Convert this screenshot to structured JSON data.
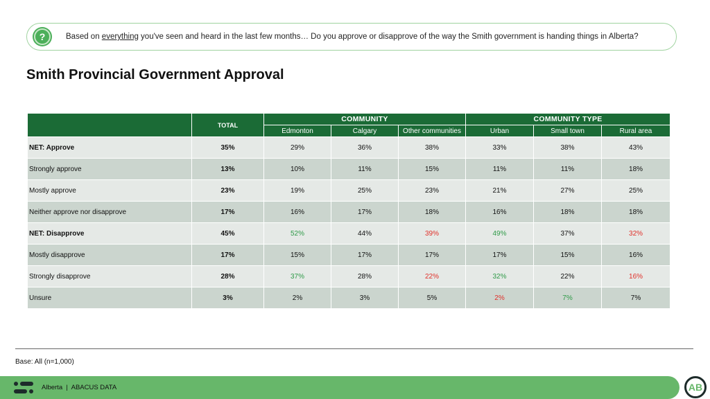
{
  "question": {
    "pre": "Based on ",
    "underlined": "everything",
    "post": " you've seen and heard in the last few months… Do you approve or disapprove of the way the Smith government is handing things in Alberta?",
    "icon": "question-bubble-icon"
  },
  "title": "Smith Provincial Government Approval",
  "table": {
    "total_header": "TOTAL",
    "groups": [
      "COMMUNITY",
      "COMMUNITY TYPE"
    ],
    "columns": [
      "Edmonton",
      "Calgary",
      "Other communities",
      "Urban",
      "Small town",
      "Rural area"
    ],
    "rows": [
      {
        "label": "NET: Approve",
        "bold": true,
        "total": "35%",
        "values": [
          "29%",
          "36%",
          "38%",
          "33%",
          "38%",
          "43%"
        ],
        "colors": [
          "",
          "",
          "",
          "",
          "",
          ""
        ]
      },
      {
        "label": "Strongly approve",
        "total": "13%",
        "values": [
          "10%",
          "11%",
          "15%",
          "11%",
          "11%",
          "18%"
        ],
        "colors": [
          "",
          "",
          "",
          "",
          "",
          ""
        ]
      },
      {
        "label": "Mostly approve",
        "total": "23%",
        "values": [
          "19%",
          "25%",
          "23%",
          "21%",
          "27%",
          "25%"
        ],
        "colors": [
          "",
          "",
          "",
          "",
          "",
          ""
        ]
      },
      {
        "label": "Neither approve nor disapprove",
        "total": "17%",
        "values": [
          "16%",
          "17%",
          "18%",
          "16%",
          "18%",
          "18%"
        ],
        "colors": [
          "",
          "",
          "",
          "",
          "",
          ""
        ]
      },
      {
        "label": "NET: Disapprove",
        "bold": true,
        "total": "45%",
        "values": [
          "52%",
          "44%",
          "39%",
          "49%",
          "37%",
          "32%"
        ],
        "colors": [
          "g",
          "",
          "r",
          "g",
          "",
          "r"
        ]
      },
      {
        "label": "Mostly disapprove",
        "total": "17%",
        "values": [
          "15%",
          "17%",
          "17%",
          "17%",
          "15%",
          "16%"
        ],
        "colors": [
          "",
          "",
          "",
          "",
          "",
          ""
        ]
      },
      {
        "label": "Strongly disapprove",
        "total": "28%",
        "values": [
          "37%",
          "28%",
          "22%",
          "32%",
          "22%",
          "16%"
        ],
        "colors": [
          "g",
          "",
          "r",
          "g",
          "",
          "r"
        ]
      },
      {
        "label": "Unsure",
        "total": "3%",
        "values": [
          "2%",
          "3%",
          "5%",
          "2%",
          "7%",
          "7%"
        ],
        "colors": [
          "",
          "",
          "",
          "r",
          "g",
          ""
        ]
      }
    ]
  },
  "colors": {
    "header": "#1b6b36",
    "higher": "#2f9a48",
    "lower": "#e0302a",
    "footer": "#67b76a"
  },
  "base": "Base: All (n=1,000)",
  "footer": {
    "text": "Alberta  |  ABACUS DATA",
    "badge": "AB"
  }
}
